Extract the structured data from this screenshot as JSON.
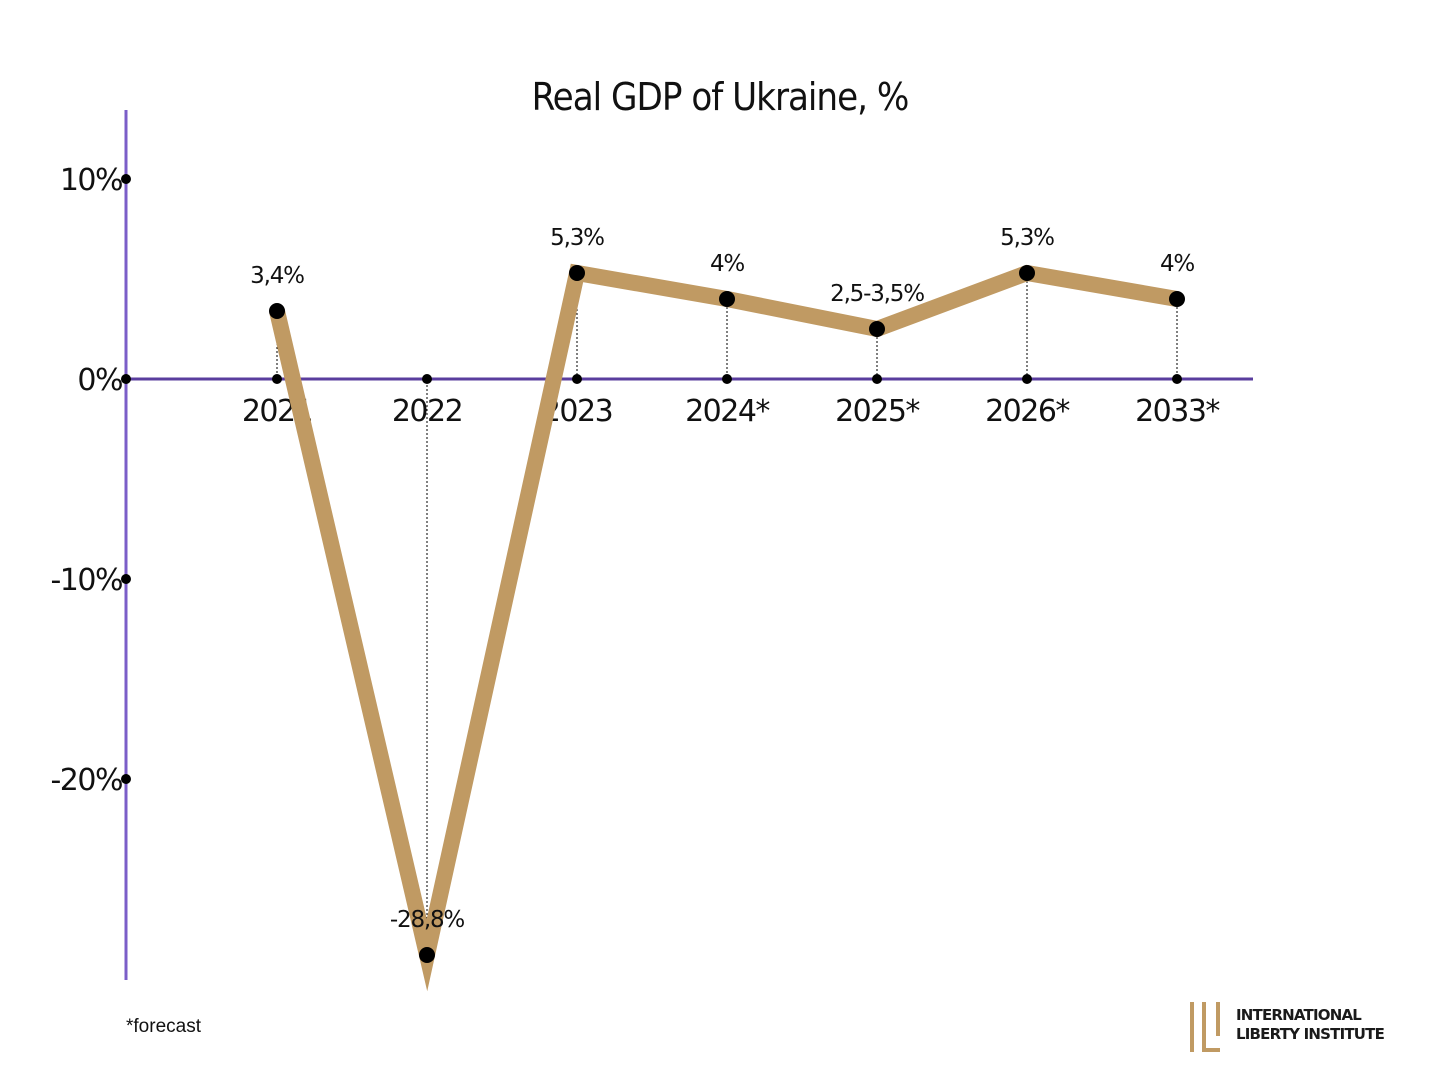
{
  "chart_data": {
    "type": "line",
    "title": "Real GDP of Ukraine, %",
    "xlabel": "",
    "ylabel": "",
    "categories": [
      "2021",
      "2022",
      "2023",
      "2024*",
      "2025*",
      "2026*",
      "2033*"
    ],
    "series": [
      {
        "values": [
          3.4,
          -28.8,
          5.3,
          4,
          2.5,
          5.3,
          4
        ],
        "data_labels": [
          "3,4%",
          "-28,8%",
          "5,3%",
          "4%",
          "2,5-3,5%",
          "5,3%",
          "4%"
        ],
        "color": "#c09a63"
      }
    ],
    "ylim": [
      -30,
      13.5
    ],
    "yticks": [
      10,
      0,
      -10,
      -20
    ],
    "ytick_labels": [
      "10%",
      "0%",
      "-10%",
      "-20%"
    ],
    "grid": false,
    "legend": "none",
    "axis_color": "#7b5ec8",
    "marker_color": "#000000",
    "drop_lines": "dotted"
  },
  "footnote": "*forecast",
  "logo": {
    "line1": "INTERNATIONAL",
    "line2": "LIBERTY INSTITUTE",
    "mark_color": "#c09a63"
  }
}
